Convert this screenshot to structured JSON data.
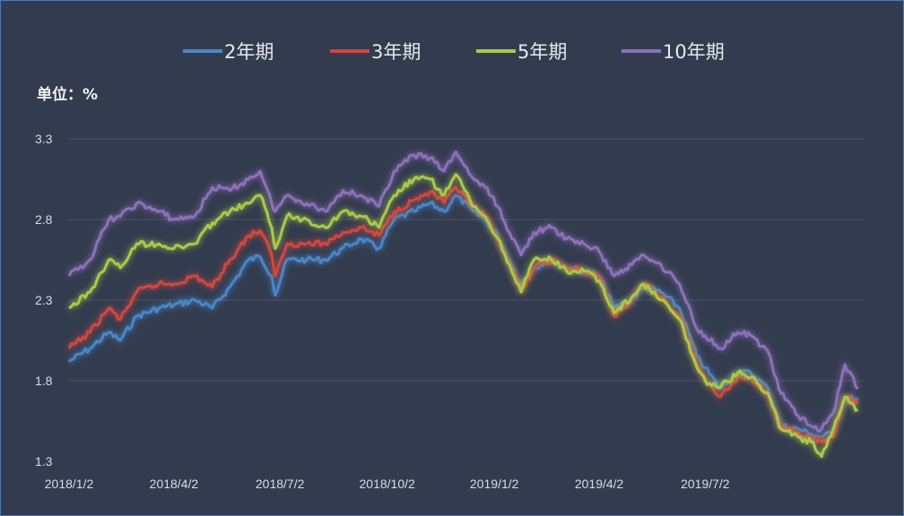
{
  "chart_data": {
    "type": "line",
    "title": "",
    "unit_label": "单位：%",
    "xlabel": "",
    "ylabel": "",
    "ylim": [
      1.3,
      3.3
    ],
    "yticks": [
      "1.3",
      "1.8",
      "2.3",
      "2.8",
      "3.3"
    ],
    "xticks": [
      {
        "label": "2018/1/2",
        "date": "2018-01-02"
      },
      {
        "label": "2018/4/2",
        "date": "2018-04-02"
      },
      {
        "label": "2018/7/2",
        "date": "2018-07-02"
      },
      {
        "label": "2018/10/2",
        "date": "2018-10-02"
      },
      {
        "label": "2019/1/2",
        "date": "2019-01-02"
      },
      {
        "label": "2019/4/2",
        "date": "2019-04-02"
      },
      {
        "label": "2019/7/2",
        "date": "2019-07-02"
      }
    ],
    "grid": true,
    "legend_position": "top",
    "series": [
      {
        "name": "2年期",
        "color": "#4a86c8",
        "points": [
          [
            "2018-01-02",
            1.92
          ],
          [
            "2018-01-20",
            2.0
          ],
          [
            "2018-02-05",
            2.1
          ],
          [
            "2018-02-15",
            2.05
          ],
          [
            "2018-03-01",
            2.2
          ],
          [
            "2018-03-20",
            2.25
          ],
          [
            "2018-04-02",
            2.27
          ],
          [
            "2018-04-20",
            2.3
          ],
          [
            "2018-05-05",
            2.25
          ],
          [
            "2018-05-20",
            2.38
          ],
          [
            "2018-06-05",
            2.55
          ],
          [
            "2018-06-15",
            2.57
          ],
          [
            "2018-06-25",
            2.45
          ],
          [
            "2018-06-28",
            2.33
          ],
          [
            "2018-07-08",
            2.55
          ],
          [
            "2018-07-25",
            2.55
          ],
          [
            "2018-08-10",
            2.55
          ],
          [
            "2018-08-25",
            2.62
          ],
          [
            "2018-09-10",
            2.68
          ],
          [
            "2018-09-25",
            2.62
          ],
          [
            "2018-10-08",
            2.8
          ],
          [
            "2018-10-25",
            2.85
          ],
          [
            "2018-11-08",
            2.9
          ],
          [
            "2018-11-20",
            2.85
          ],
          [
            "2018-11-30",
            2.95
          ],
          [
            "2018-12-15",
            2.85
          ],
          [
            "2018-12-25",
            2.8
          ],
          [
            "2019-01-05",
            2.7
          ],
          [
            "2019-01-15",
            2.55
          ],
          [
            "2019-01-25",
            2.4
          ],
          [
            "2019-02-05",
            2.5
          ],
          [
            "2019-02-20",
            2.55
          ],
          [
            "2019-03-05",
            2.5
          ],
          [
            "2019-03-20",
            2.48
          ],
          [
            "2019-04-02",
            2.45
          ],
          [
            "2019-04-15",
            2.25
          ],
          [
            "2019-04-30",
            2.3
          ],
          [
            "2019-05-10",
            2.38
          ],
          [
            "2019-05-25",
            2.35
          ],
          [
            "2019-06-10",
            2.25
          ],
          [
            "2019-06-25",
            1.95
          ],
          [
            "2019-07-02",
            1.88
          ],
          [
            "2019-07-15",
            1.75
          ],
          [
            "2019-07-30",
            1.85
          ],
          [
            "2019-08-10",
            1.85
          ],
          [
            "2019-08-25",
            1.75
          ],
          [
            "2019-09-05",
            1.52
          ],
          [
            "2019-09-20",
            1.5
          ],
          [
            "2019-10-01",
            1.47
          ],
          [
            "2019-10-10",
            1.45
          ],
          [
            "2019-10-20",
            1.48
          ],
          [
            "2019-10-30",
            1.7
          ],
          [
            "2019-11-10",
            1.68
          ]
        ]
      },
      {
        "name": "3年期",
        "color": "#d24640",
        "points": [
          [
            "2018-01-02",
            2.0
          ],
          [
            "2018-01-20",
            2.1
          ],
          [
            "2018-02-05",
            2.25
          ],
          [
            "2018-02-15",
            2.18
          ],
          [
            "2018-03-01",
            2.35
          ],
          [
            "2018-03-20",
            2.4
          ],
          [
            "2018-04-02",
            2.4
          ],
          [
            "2018-04-20",
            2.45
          ],
          [
            "2018-05-05",
            2.38
          ],
          [
            "2018-05-20",
            2.55
          ],
          [
            "2018-06-05",
            2.7
          ],
          [
            "2018-06-15",
            2.73
          ],
          [
            "2018-06-25",
            2.58
          ],
          [
            "2018-06-28",
            2.45
          ],
          [
            "2018-07-08",
            2.65
          ],
          [
            "2018-07-25",
            2.65
          ],
          [
            "2018-08-10",
            2.65
          ],
          [
            "2018-08-25",
            2.72
          ],
          [
            "2018-09-10",
            2.75
          ],
          [
            "2018-09-25",
            2.7
          ],
          [
            "2018-10-08",
            2.85
          ],
          [
            "2018-10-25",
            2.92
          ],
          [
            "2018-11-08",
            2.97
          ],
          [
            "2018-11-20",
            2.9
          ],
          [
            "2018-11-30",
            3.0
          ],
          [
            "2018-12-15",
            2.88
          ],
          [
            "2018-12-25",
            2.82
          ],
          [
            "2019-01-05",
            2.68
          ],
          [
            "2019-01-15",
            2.53
          ],
          [
            "2019-01-25",
            2.35
          ],
          [
            "2019-02-05",
            2.5
          ],
          [
            "2019-02-20",
            2.55
          ],
          [
            "2019-03-05",
            2.5
          ],
          [
            "2019-03-20",
            2.48
          ],
          [
            "2019-04-02",
            2.45
          ],
          [
            "2019-04-15",
            2.2
          ],
          [
            "2019-04-30",
            2.3
          ],
          [
            "2019-05-10",
            2.4
          ],
          [
            "2019-05-25",
            2.32
          ],
          [
            "2019-06-10",
            2.2
          ],
          [
            "2019-06-25",
            1.9
          ],
          [
            "2019-07-02",
            1.82
          ],
          [
            "2019-07-15",
            1.7
          ],
          [
            "2019-07-30",
            1.82
          ],
          [
            "2019-08-10",
            1.82
          ],
          [
            "2019-08-25",
            1.72
          ],
          [
            "2019-09-05",
            1.5
          ],
          [
            "2019-09-20",
            1.48
          ],
          [
            "2019-10-01",
            1.44
          ],
          [
            "2019-10-10",
            1.42
          ],
          [
            "2019-10-20",
            1.45
          ],
          [
            "2019-10-30",
            1.7
          ],
          [
            "2019-11-10",
            1.66
          ]
        ]
      },
      {
        "name": "5年期",
        "color": "#a9c94a",
        "points": [
          [
            "2018-01-02",
            2.25
          ],
          [
            "2018-01-20",
            2.35
          ],
          [
            "2018-02-05",
            2.55
          ],
          [
            "2018-02-15",
            2.5
          ],
          [
            "2018-03-01",
            2.65
          ],
          [
            "2018-03-20",
            2.65
          ],
          [
            "2018-04-02",
            2.62
          ],
          [
            "2018-04-20",
            2.65
          ],
          [
            "2018-05-05",
            2.78
          ],
          [
            "2018-05-20",
            2.85
          ],
          [
            "2018-06-05",
            2.9
          ],
          [
            "2018-06-15",
            2.95
          ],
          [
            "2018-06-25",
            2.75
          ],
          [
            "2018-06-28",
            2.62
          ],
          [
            "2018-07-08",
            2.82
          ],
          [
            "2018-07-25",
            2.8
          ],
          [
            "2018-08-10",
            2.75
          ],
          [
            "2018-08-25",
            2.85
          ],
          [
            "2018-09-10",
            2.82
          ],
          [
            "2018-09-25",
            2.75
          ],
          [
            "2018-10-08",
            2.95
          ],
          [
            "2018-10-25",
            3.05
          ],
          [
            "2018-11-08",
            3.05
          ],
          [
            "2018-11-20",
            2.95
          ],
          [
            "2018-11-30",
            3.08
          ],
          [
            "2018-12-15",
            2.88
          ],
          [
            "2018-12-25",
            2.82
          ],
          [
            "2019-01-05",
            2.68
          ],
          [
            "2019-01-15",
            2.52
          ],
          [
            "2019-01-25",
            2.35
          ],
          [
            "2019-02-05",
            2.55
          ],
          [
            "2019-02-20",
            2.55
          ],
          [
            "2019-03-05",
            2.48
          ],
          [
            "2019-03-20",
            2.48
          ],
          [
            "2019-04-02",
            2.42
          ],
          [
            "2019-04-15",
            2.22
          ],
          [
            "2019-04-30",
            2.32
          ],
          [
            "2019-05-10",
            2.4
          ],
          [
            "2019-05-25",
            2.3
          ],
          [
            "2019-06-10",
            2.18
          ],
          [
            "2019-06-25",
            1.88
          ],
          [
            "2019-07-02",
            1.8
          ],
          [
            "2019-07-15",
            1.76
          ],
          [
            "2019-07-30",
            1.85
          ],
          [
            "2019-08-10",
            1.82
          ],
          [
            "2019-08-25",
            1.72
          ],
          [
            "2019-09-05",
            1.5
          ],
          [
            "2019-09-20",
            1.45
          ],
          [
            "2019-10-01",
            1.42
          ],
          [
            "2019-10-10",
            1.33
          ],
          [
            "2019-10-20",
            1.5
          ],
          [
            "2019-10-30",
            1.7
          ],
          [
            "2019-11-10",
            1.62
          ]
        ]
      },
      {
        "name": "10年期",
        "color": "#8e6fba",
        "points": [
          [
            "2018-01-02",
            2.45
          ],
          [
            "2018-01-20",
            2.55
          ],
          [
            "2018-02-05",
            2.8
          ],
          [
            "2018-02-15",
            2.82
          ],
          [
            "2018-03-01",
            2.9
          ],
          [
            "2018-03-20",
            2.85
          ],
          [
            "2018-04-02",
            2.8
          ],
          [
            "2018-04-20",
            2.82
          ],
          [
            "2018-05-05",
            3.0
          ],
          [
            "2018-05-20",
            2.98
          ],
          [
            "2018-06-05",
            3.05
          ],
          [
            "2018-06-15",
            3.1
          ],
          [
            "2018-06-25",
            2.9
          ],
          [
            "2018-06-28",
            2.85
          ],
          [
            "2018-07-08",
            2.95
          ],
          [
            "2018-07-25",
            2.9
          ],
          [
            "2018-08-10",
            2.85
          ],
          [
            "2018-08-25",
            2.98
          ],
          [
            "2018-09-10",
            2.95
          ],
          [
            "2018-09-25",
            2.88
          ],
          [
            "2018-10-08",
            3.1
          ],
          [
            "2018-10-25",
            3.2
          ],
          [
            "2018-11-08",
            3.18
          ],
          [
            "2018-11-20",
            3.1
          ],
          [
            "2018-11-30",
            3.22
          ],
          [
            "2018-12-15",
            3.05
          ],
          [
            "2018-12-25",
            3.0
          ],
          [
            "2019-01-05",
            2.88
          ],
          [
            "2019-01-15",
            2.72
          ],
          [
            "2019-01-25",
            2.58
          ],
          [
            "2019-02-05",
            2.72
          ],
          [
            "2019-02-20",
            2.75
          ],
          [
            "2019-03-05",
            2.68
          ],
          [
            "2019-03-20",
            2.65
          ],
          [
            "2019-04-02",
            2.6
          ],
          [
            "2019-04-15",
            2.45
          ],
          [
            "2019-04-30",
            2.52
          ],
          [
            "2019-05-10",
            2.58
          ],
          [
            "2019-05-25",
            2.52
          ],
          [
            "2019-06-10",
            2.4
          ],
          [
            "2019-06-25",
            2.12
          ],
          [
            "2019-07-02",
            2.08
          ],
          [
            "2019-07-15",
            2.0
          ],
          [
            "2019-07-30",
            2.1
          ],
          [
            "2019-08-10",
            2.08
          ],
          [
            "2019-08-25",
            1.98
          ],
          [
            "2019-09-05",
            1.72
          ],
          [
            "2019-09-20",
            1.58
          ],
          [
            "2019-10-01",
            1.52
          ],
          [
            "2019-10-10",
            1.5
          ],
          [
            "2019-10-20",
            1.6
          ],
          [
            "2019-10-30",
            1.9
          ],
          [
            "2019-11-10",
            1.75
          ]
        ]
      }
    ]
  }
}
